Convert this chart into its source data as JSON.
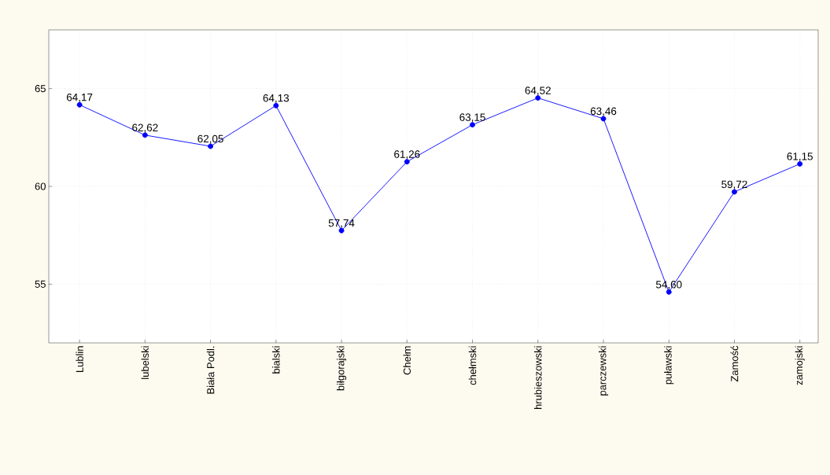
{
  "chart_data": {
    "type": "line",
    "categories": [
      "Lublin",
      "lubelski",
      "Biała Podl.",
      "bialski",
      "biłgorajski",
      "Chełm",
      "chełmski",
      "hrubieszowski",
      "parczewski",
      "puławski",
      "Zamość",
      "zamojski"
    ],
    "series": [
      {
        "color": "#0000ff",
        "values": [
          64.17,
          62.62,
          62.05,
          64.13,
          57.74,
          61.26,
          63.15,
          64.52,
          63.46,
          54.6,
          59.72,
          61.15
        ],
        "value_labels": [
          "64,17",
          "62,62",
          "62,05",
          "64,13",
          "57,74",
          "61,26",
          "63,15",
          "64,52",
          "63,46",
          "54,60",
          "59,72",
          "61,15"
        ]
      }
    ],
    "ylim": [
      52,
      68
    ],
    "yticks": [
      55,
      60,
      65
    ],
    "grid": true,
    "marker": "circle",
    "line_style": "solid"
  }
}
